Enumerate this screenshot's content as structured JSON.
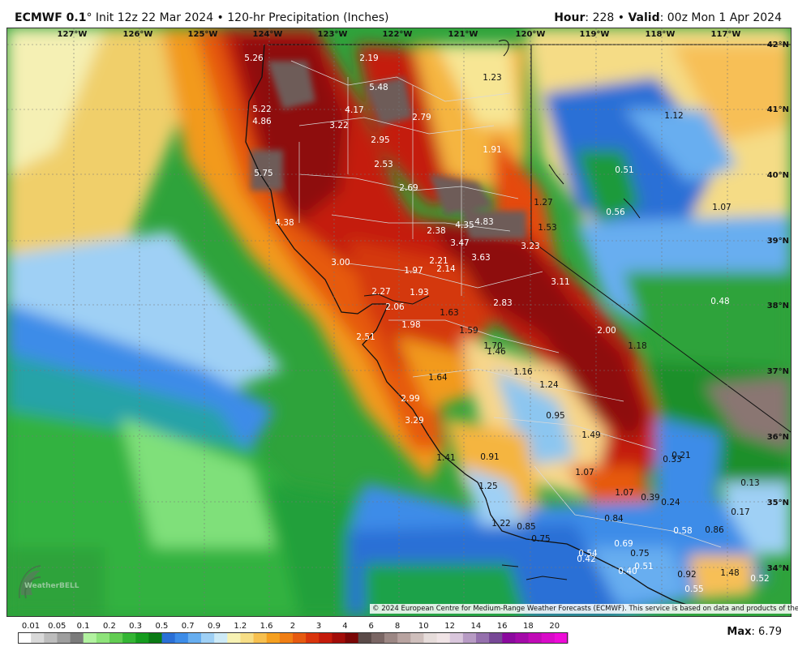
{
  "header": {
    "model": "ECMWF 0.1",
    "degree": "°",
    "title_rest": " Init 12z 22 Mar 2024 • 120-hr Precipitation (Inches)",
    "hour_label": "Hour",
    "hour_value": ": 228 • ",
    "valid_label": "Valid",
    "valid_value": ": 00z Mon 1 Apr 2024"
  },
  "axes": {
    "lon_labels": [
      "127°W",
      "126°W",
      "125°W",
      "124°W",
      "123°W",
      "122°W",
      "121°W",
      "120°W",
      "119°W",
      "118°W",
      "117°W"
    ],
    "lat_labels": [
      "42°N",
      "41°N",
      "40°N",
      "39°N",
      "38°N",
      "37°N",
      "36°N",
      "35°N",
      "34°N"
    ]
  },
  "point_values": [
    {
      "v": "5.26",
      "dark": false
    },
    {
      "v": "2.19",
      "dark": false
    },
    {
      "v": "5.48",
      "dark": false
    },
    {
      "v": "1.23",
      "dark": true
    },
    {
      "v": "5.22",
      "dark": false
    },
    {
      "v": "4.17",
      "dark": false
    },
    {
      "v": "4.86",
      "dark": false
    },
    {
      "v": "3.22",
      "dark": false
    },
    {
      "v": "2.79",
      "dark": false
    },
    {
      "v": "1.12",
      "dark": true
    },
    {
      "v": "2.95",
      "dark": false
    },
    {
      "v": "1.91",
      "dark": false
    },
    {
      "v": "2.53",
      "dark": false
    },
    {
      "v": "5.75",
      "dark": false
    },
    {
      "v": "0.51",
      "dark": false
    },
    {
      "v": "2.69",
      "dark": false
    },
    {
      "v": "1.27",
      "dark": true
    },
    {
      "v": "0.56",
      "dark": false
    },
    {
      "v": "1.07",
      "dark": true
    },
    {
      "v": "4.38",
      "dark": false
    },
    {
      "v": "4.35",
      "dark": false
    },
    {
      "v": "4.83",
      "dark": false
    },
    {
      "v": "1.53",
      "dark": true
    },
    {
      "v": "2.38",
      "dark": false
    },
    {
      "v": "3.47",
      "dark": false
    },
    {
      "v": "3.23",
      "dark": false
    },
    {
      "v": "3.00",
      "dark": false
    },
    {
      "v": "3.63",
      "dark": false
    },
    {
      "v": "2.21",
      "dark": false
    },
    {
      "v": "1.97",
      "dark": false
    },
    {
      "v": "2.14",
      "dark": false
    },
    {
      "v": "3.11",
      "dark": false
    },
    {
      "v": "2.27",
      "dark": false
    },
    {
      "v": "1.93",
      "dark": false
    },
    {
      "v": "0.48",
      "dark": false
    },
    {
      "v": "2.06",
      "dark": false
    },
    {
      "v": "1.63",
      "dark": true
    },
    {
      "v": "2.83",
      "dark": false
    },
    {
      "v": "1.98",
      "dark": false
    },
    {
      "v": "1.59",
      "dark": true
    },
    {
      "v": "2.00",
      "dark": false
    },
    {
      "v": "2.51",
      "dark": false
    },
    {
      "v": "1.70",
      "dark": true
    },
    {
      "v": "1.18",
      "dark": true
    },
    {
      "v": "1.46",
      "dark": true
    },
    {
      "v": "1.16",
      "dark": true
    },
    {
      "v": "1.64",
      "dark": true
    },
    {
      "v": "1.24",
      "dark": true
    },
    {
      "v": "2.99",
      "dark": false
    },
    {
      "v": "3.29",
      "dark": false
    },
    {
      "v": "0.95",
      "dark": true
    },
    {
      "v": "1.49",
      "dark": true
    },
    {
      "v": "1.41",
      "dark": true
    },
    {
      "v": "0.91",
      "dark": true
    },
    {
      "v": "0.21",
      "dark": true
    },
    {
      "v": "0.33",
      "dark": true
    },
    {
      "v": "1.07",
      "dark": true
    },
    {
      "v": "0.13",
      "dark": true
    },
    {
      "v": "1.25",
      "dark": true
    },
    {
      "v": "1.07",
      "dark": true
    },
    {
      "v": "0.39",
      "dark": true
    },
    {
      "v": "0.24",
      "dark": true
    },
    {
      "v": "0.17",
      "dark": true
    },
    {
      "v": "0.84",
      "dark": true
    },
    {
      "v": "1.22",
      "dark": true
    },
    {
      "v": "0.85",
      "dark": true
    },
    {
      "v": "0.58",
      "dark": false
    },
    {
      "v": "0.86",
      "dark": true
    },
    {
      "v": "0.75",
      "dark": true
    },
    {
      "v": "0.69",
      "dark": false
    },
    {
      "v": "0.54",
      "dark": false
    },
    {
      "v": "0.75",
      "dark": true
    },
    {
      "v": "0.42",
      "dark": false
    },
    {
      "v": "0.51",
      "dark": false
    },
    {
      "v": "0.40",
      "dark": false
    },
    {
      "v": "0.92",
      "dark": true
    },
    {
      "v": "1.48",
      "dark": true
    },
    {
      "v": "0.52",
      "dark": false
    },
    {
      "v": "0.55",
      "dark": false
    }
  ],
  "copyright": "© 2024 European Centre for Medium-Range Weather Forecasts (ECMWF). This service is based on data and products of the ECMWF.",
  "logo": {
    "text": "WeatherBELL"
  },
  "legend": {
    "labels": [
      "0.01",
      "0.05",
      "0.1",
      "0.2",
      "0.3",
      "0.5",
      "0.7",
      "0.9",
      "1.2",
      "1.6",
      "2",
      "3",
      "4",
      "6",
      "8",
      "10",
      "12",
      "14",
      "16",
      "18",
      "20"
    ],
    "colors": [
      "#ffffff",
      "#d9d9d9",
      "#bdbdbd",
      "#9e9e9e",
      "#7b7b7b",
      "#b2f2a0",
      "#8ee37a",
      "#62cc52",
      "#34b534",
      "#159c1e",
      "#0a7a14",
      "#2a6fd6",
      "#3d8ce8",
      "#67aef0",
      "#9fd0f5",
      "#cdeaf7",
      "#f7f2b4",
      "#f7de86",
      "#f7c04f",
      "#f5a020",
      "#f07e14",
      "#e65a10",
      "#d9340c",
      "#c41a0a",
      "#a20c08",
      "#7a0606",
      "#5a4a48",
      "#7a6664",
      "#9c8784",
      "#b8a3a0",
      "#cfbfbc",
      "#e6dcda",
      "#f0e4e6",
      "#d9c6dc",
      "#b79bc4",
      "#9570ad",
      "#774896",
      "#8b0a9e",
      "#a30aa8",
      "#c00ab6",
      "#d80ac8",
      "#ee0ad8"
    ]
  },
  "max": {
    "label": "Max",
    "value": ": 6.79"
  }
}
